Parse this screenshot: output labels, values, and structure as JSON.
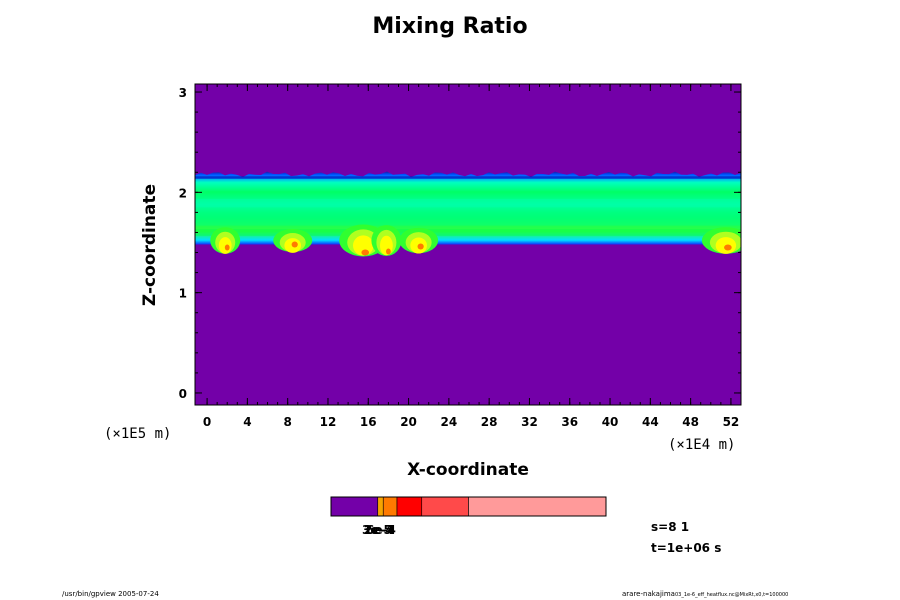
{
  "chart_data": {
    "type": "heatmap",
    "title": "Mixing Ratio",
    "xlabel": "X-coordinate",
    "ylabel": "Z-coordinate",
    "x_unit": "(×1E4 m)",
    "y_unit": "(×1E5 m)",
    "x_ticks": [
      "0",
      "4",
      "8",
      "12",
      "16",
      "20",
      "24",
      "28",
      "32",
      "36",
      "40",
      "44",
      "48",
      "52"
    ],
    "y_ticks": [
      "0",
      "1",
      "2",
      "3"
    ],
    "xlim": [
      -1.2,
      53.0
    ],
    "ylim": [
      -0.12,
      3.08
    ],
    "field": {
      "background_color": "#7300a8",
      "layer_top": 2.18,
      "layer_base": 1.48,
      "cloud_pockets": [
        {
          "x": 1.8,
          "z_bottom": 1.42
        },
        {
          "x": 8.5,
          "z_bottom": 1.45
        },
        {
          "x": 15.5,
          "z_bottom": 1.37
        },
        {
          "x": 17.8,
          "z_bottom": 1.38
        },
        {
          "x": 21.0,
          "z_bottom": 1.43
        },
        {
          "x": 51.5,
          "z_bottom": 1.42
        }
      ]
    },
    "colorbar": {
      "colors": [
        "#7300a8",
        "#f5a400",
        "#ff7a00",
        "#ff0000",
        "#ff4a4a",
        "#ff9a9a"
      ],
      "fractions": [
        0.17,
        0.02,
        0.05,
        0.09,
        0.17,
        0.5
      ],
      "labels": [
        "3e-5",
        "2e-4",
        "6e-4"
      ]
    }
  },
  "info": {
    "s_value": "s=8 1",
    "t_value": "t=1e+06 s",
    "footer_left": "/usr/bin/gpview 2005-07-24",
    "footer_right_main": "arare-nakajima",
    "footer_right_sub": "03_1e-6_eff_heatflux.nc@MixRt,x0,t=100000"
  }
}
